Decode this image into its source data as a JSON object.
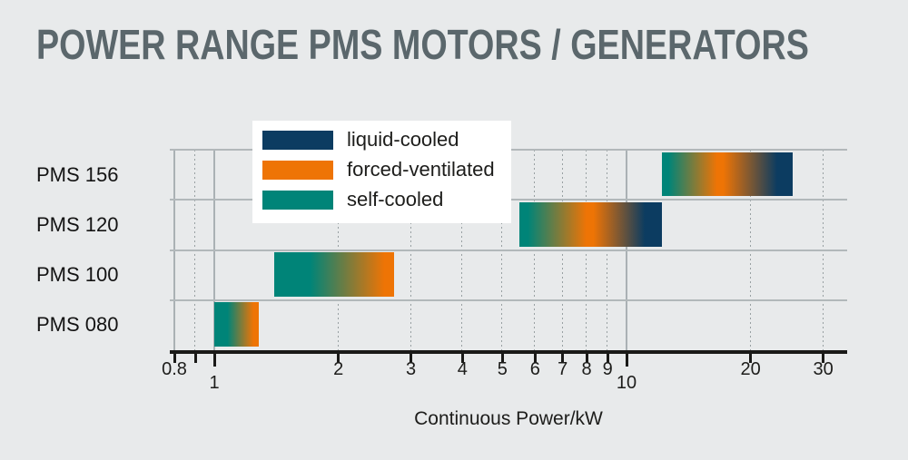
{
  "title": "POWER RANGE PMS MOTORS / GENERATORS",
  "colors": {
    "background": "#e8eaeb",
    "title_text": "#5b676c",
    "text": "#1d1d1b",
    "axis": "#1a1a18",
    "gridline_solid": "#aab1b4",
    "gridline_dotted": "#98a0a2",
    "legend_background": "#ffffff"
  },
  "legend": {
    "items": [
      {
        "label": "liquid-cooled",
        "color": "#0c3c61"
      },
      {
        "label": "forced-ventilated",
        "color": "#ee7405"
      },
      {
        "label": "self-cooled",
        "color": "#008478"
      }
    ]
  },
  "chart_data": {
    "type": "bar",
    "orientation": "horizontal-range",
    "x_scale": "log10",
    "title": "POWER RANGE PMS MOTORS / GENERATORS",
    "xlabel": "Continuous Power/kW",
    "x_range_kw": [
      0.8,
      34
    ],
    "grid": "on",
    "legend_position": "top-left-overlay",
    "categories": [
      "PMS 156",
      "PMS 120",
      "PMS 100",
      "PMS 080"
    ],
    "ticks": [
      {
        "kw": 0.8,
        "label": "0.8",
        "major": false,
        "grid": "solid"
      },
      {
        "kw": 0.9,
        "label": "",
        "major": false,
        "grid": "dotted"
      },
      {
        "kw": 1,
        "label": "1",
        "major": true,
        "grid": "solid"
      },
      {
        "kw": 2,
        "label": "2",
        "major": false,
        "grid": "dotted"
      },
      {
        "kw": 3,
        "label": "3",
        "major": false,
        "grid": "dotted"
      },
      {
        "kw": 4,
        "label": "4",
        "major": false,
        "grid": "dotted"
      },
      {
        "kw": 5,
        "label": "5",
        "major": false,
        "grid": "dotted"
      },
      {
        "kw": 6,
        "label": "6",
        "major": false,
        "grid": "dotted"
      },
      {
        "kw": 7,
        "label": "7",
        "major": false,
        "grid": "dotted"
      },
      {
        "kw": 8,
        "label": "8",
        "major": false,
        "grid": "dotted"
      },
      {
        "kw": 9,
        "label": "9",
        "major": false,
        "grid": "dotted"
      },
      {
        "kw": 10,
        "label": "10",
        "major": true,
        "grid": "solid"
      },
      {
        "kw": 20,
        "label": "20",
        "major": false,
        "grid": "dotted"
      },
      {
        "kw": 30,
        "label": "30",
        "major": false,
        "grid": "dotted"
      }
    ],
    "rows": [
      {
        "category": "PMS 156",
        "bar": {
          "start_kw": 12.2,
          "end_kw": 25.3,
          "cooling_stops": [
            {
              "type": "self-cooled",
              "pos": 0.0
            },
            {
              "type": "self-cooled",
              "pos": 0.05
            },
            {
              "type": "forced-ventilated",
              "pos": 0.42
            },
            {
              "type": "forced-ventilated",
              "pos": 0.47
            },
            {
              "type": "liquid-cooled",
              "pos": 0.88
            },
            {
              "type": "liquid-cooled",
              "pos": 1.0
            }
          ]
        }
      },
      {
        "category": "PMS 120",
        "bar": {
          "start_kw": 5.5,
          "end_kw": 12.2,
          "cooling_stops": [
            {
              "type": "self-cooled",
              "pos": 0.0
            },
            {
              "type": "self-cooled",
              "pos": 0.06
            },
            {
              "type": "forced-ventilated",
              "pos": 0.47
            },
            {
              "type": "forced-ventilated",
              "pos": 0.52
            },
            {
              "type": "liquid-cooled",
              "pos": 0.88
            },
            {
              "type": "liquid-cooled",
              "pos": 1.0
            }
          ]
        }
      },
      {
        "category": "PMS 100",
        "bar": {
          "start_kw": 1.4,
          "end_kw": 2.73,
          "cooling_stops": [
            {
              "type": "self-cooled",
              "pos": 0.0
            },
            {
              "type": "self-cooled",
              "pos": 0.3
            },
            {
              "type": "forced-ventilated",
              "pos": 0.92
            },
            {
              "type": "forced-ventilated",
              "pos": 1.0
            }
          ]
        }
      },
      {
        "category": "PMS 080",
        "bar": {
          "start_kw": 1.0,
          "end_kw": 1.28,
          "cooling_stops": [
            {
              "type": "self-cooled",
              "pos": 0.0
            },
            {
              "type": "self-cooled",
              "pos": 0.3
            },
            {
              "type": "forced-ventilated",
              "pos": 0.88
            },
            {
              "type": "forced-ventilated",
              "pos": 1.0
            }
          ]
        }
      }
    ]
  }
}
